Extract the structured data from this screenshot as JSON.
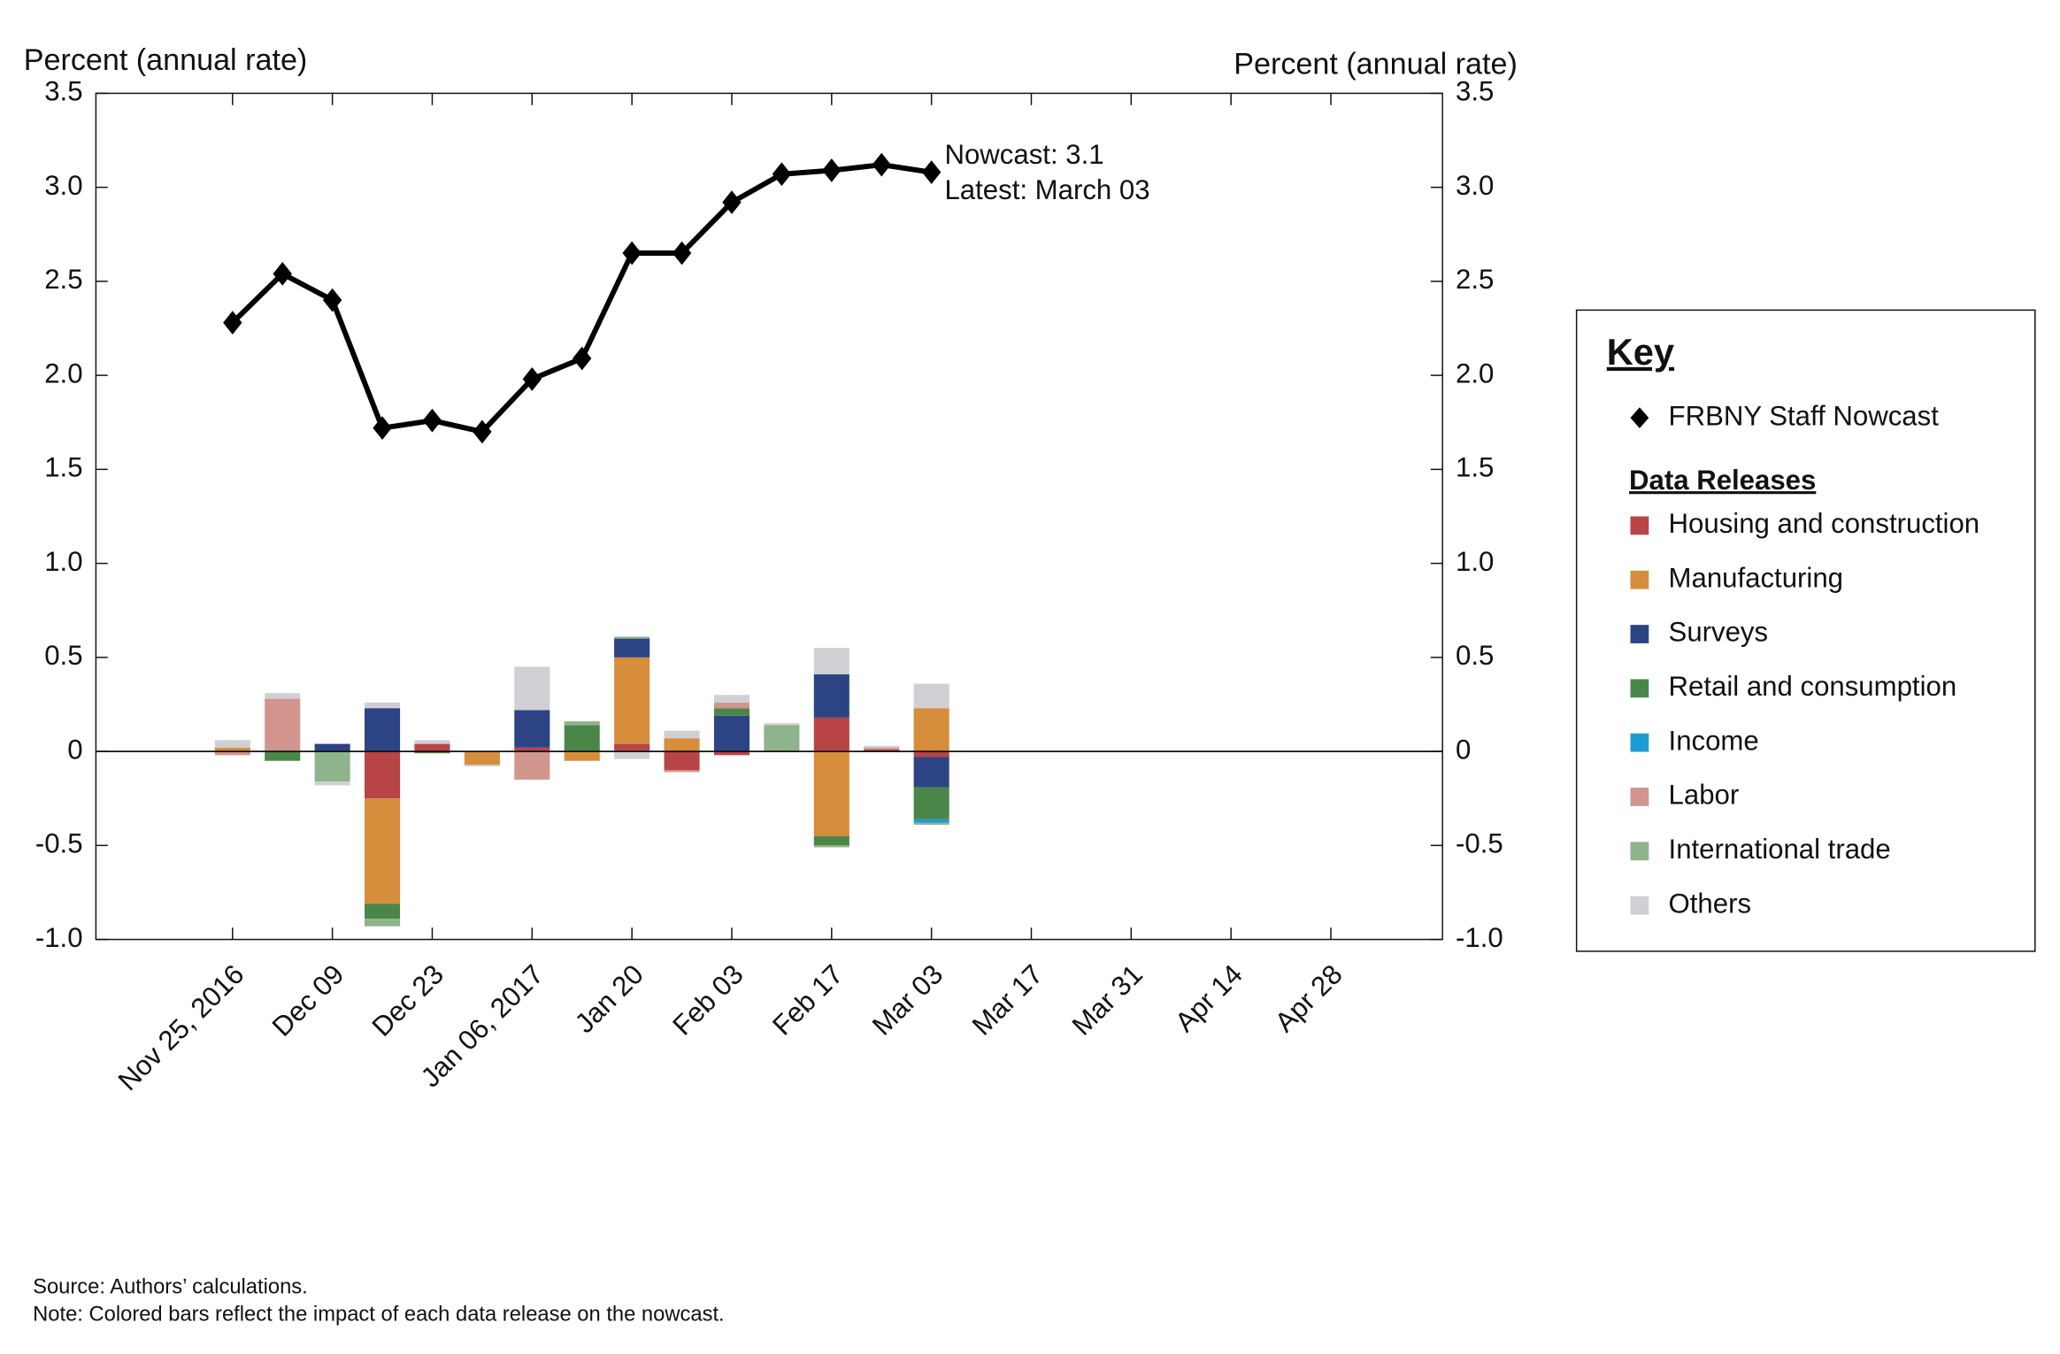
{
  "chart_data": {
    "type": "bar",
    "stacked": true,
    "y_label": "Percent (annual rate)",
    "y2_label": "Percent (annual rate)",
    "categories": [
      "Nov 25, 2016",
      null,
      "Dec 09",
      null,
      "Dec 23",
      null,
      "Jan 06, 2017",
      null,
      "Jan 20",
      null,
      "Feb 03",
      null,
      "Feb 17",
      null,
      "Mar 03",
      null,
      "Mar 17",
      null,
      "Mar 31",
      null,
      "Apr 14",
      null,
      "Apr 28",
      null
    ],
    "ylim": [
      -1.0,
      3.5
    ],
    "yticks": [
      {
        "value": -1,
        "label": "-1.0"
      },
      -0.5,
      0,
      0.5,
      {
        "value": 1,
        "label": "1.0"
      },
      1.5,
      {
        "value": 2,
        "label": "2.0"
      },
      2.5,
      {
        "value": 3,
        "label": "3.0"
      },
      3.5
    ],
    "y2lim": [
      -1.0,
      3.5
    ],
    "y2ticks": [
      {
        "value": -1,
        "label": "-1.0"
      },
      -0.5,
      0,
      0.5,
      {
        "value": 1,
        "label": "1.0"
      },
      1.5,
      {
        "value": 2,
        "label": "2.0"
      },
      2.5,
      {
        "value": 3,
        "label": "3.0"
      },
      3.5
    ],
    "legend_title": "Key",
    "legend_subtitle": "Data Releases",
    "line": {
      "type": "line",
      "name": "FRBNY Staff Nowcast",
      "color": "#000000",
      "marker": "diamond",
      "values": [
        2.28,
        2.54,
        2.4,
        1.72,
        1.76,
        1.7,
        1.98,
        2.09,
        2.65,
        2.65,
        2.92,
        3.07,
        3.09,
        3.12,
        3.08,
        null,
        null,
        null,
        null,
        null,
        null,
        null,
        null,
        null
      ]
    },
    "annotation": [
      "Nowcast:  3.1",
      "Latest: March 03"
    ],
    "series": [
      {
        "name": "Housing and construction",
        "color": "#b84446",
        "values": [
          0,
          0,
          0,
          -0.25,
          0.04,
          0,
          0.02,
          0,
          0.04,
          -0.1,
          -0.02,
          0,
          0.18,
          0.01,
          -0.03,
          null,
          null,
          null,
          null,
          null,
          null,
          null,
          null,
          null
        ]
      },
      {
        "name": "Manufacturing",
        "color": "#d68d3c",
        "values": [
          0.02,
          0,
          0,
          -0.56,
          0,
          -0.07,
          0,
          -0.05,
          0.46,
          0.07,
          0,
          0,
          -0.45,
          0,
          0.23,
          null,
          null,
          null,
          null,
          null,
          null,
          null,
          null,
          null
        ]
      },
      {
        "name": "Surveys",
        "color": "#2c4384",
        "values": [
          0,
          0,
          0.04,
          0.23,
          0,
          0,
          0.2,
          0,
          0.1,
          0,
          0.19,
          0,
          0.23,
          0,
          -0.16,
          null,
          null,
          null,
          null,
          null,
          null,
          null,
          null,
          null
        ]
      },
      {
        "name": "Retail and consumption",
        "color": "#4b8649",
        "values": [
          0,
          -0.05,
          0,
          -0.08,
          -0.01,
          0,
          0,
          0.14,
          0,
          0,
          0.04,
          0,
          -0.05,
          0,
          -0.17,
          null,
          null,
          null,
          null,
          null,
          null,
          null,
          null,
          null
        ]
      },
      {
        "name": "Income",
        "color": "#1d9bd4",
        "values": [
          0,
          0,
          0,
          0,
          0,
          0,
          0,
          0,
          0,
          0,
          0,
          0,
          0,
          0,
          -0.02,
          null,
          null,
          null,
          null,
          null,
          null,
          null,
          null,
          null
        ]
      },
      {
        "name": "Labor",
        "color": "#d1958e",
        "values": [
          -0.02,
          0.28,
          0,
          0,
          0,
          0,
          -0.15,
          0,
          0,
          -0.01,
          0.03,
          0,
          0,
          0.01,
          0,
          null,
          null,
          null,
          null,
          null,
          null,
          null,
          null,
          null
        ]
      },
      {
        "name": "International trade",
        "color": "#8fb38a",
        "values": [
          0,
          0,
          -0.16,
          -0.04,
          0,
          0,
          0,
          0.02,
          0.01,
          0,
          0,
          0.14,
          -0.01,
          0,
          -0.01,
          null,
          null,
          null,
          null,
          null,
          null,
          null,
          null,
          null
        ]
      },
      {
        "name": "Others",
        "color": "#cfcfd4",
        "values": [
          0.04,
          0.03,
          -0.02,
          0.03,
          0.02,
          -0.01,
          0.23,
          0,
          -0.04,
          0.04,
          0.04,
          0.01,
          0.14,
          0.01,
          0.13,
          null,
          null,
          null,
          null,
          null,
          null,
          null,
          null,
          null
        ]
      }
    ],
    "source": "Source: Authors’ calculations.",
    "note": "Note: Colored bars reflect the impact of each data release on the nowcast."
  }
}
